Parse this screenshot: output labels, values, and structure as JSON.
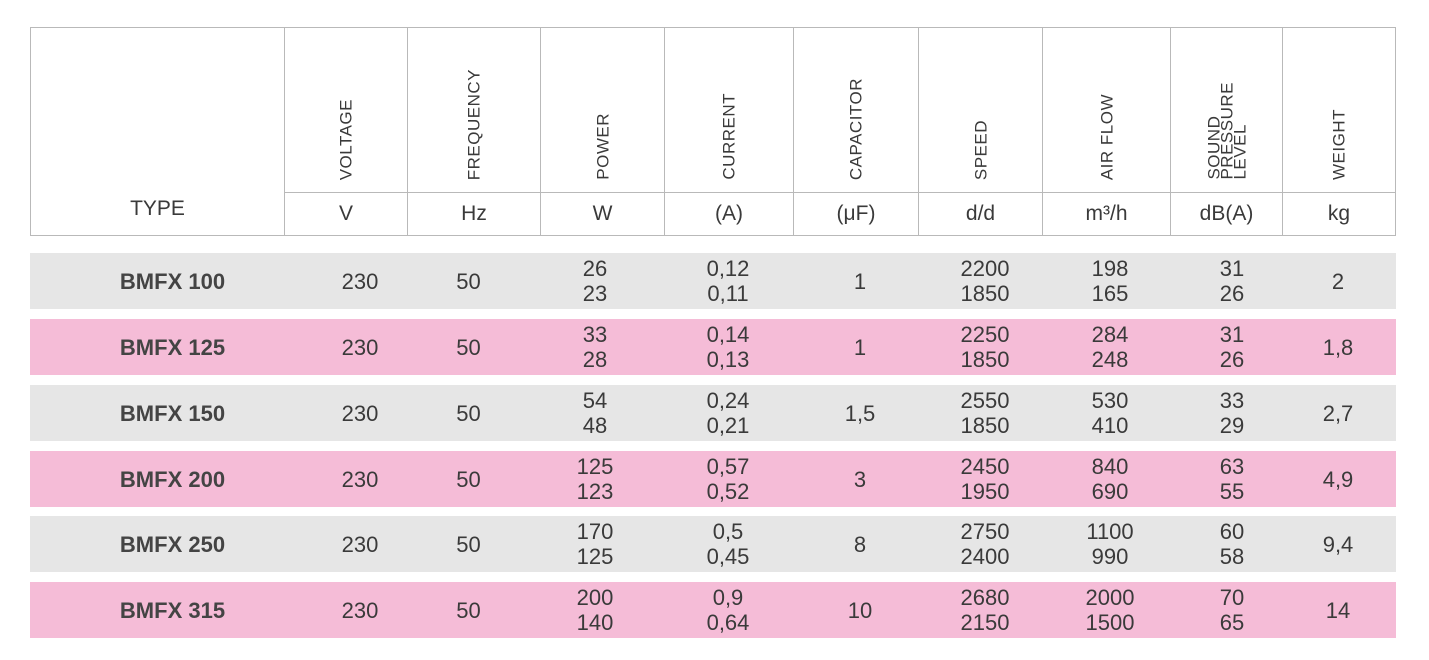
{
  "header": {
    "type_label": "TYPE",
    "columns": [
      {
        "label": "VOLTAGE",
        "unit": "V"
      },
      {
        "label": "FREQUENCY",
        "unit": "Hz"
      },
      {
        "label": "POWER",
        "unit": "W"
      },
      {
        "label": "CURRENT",
        "unit": "(A)"
      },
      {
        "label": "CAPACITOR",
        "unit": "(μF)"
      },
      {
        "label": "SPEED",
        "unit": "d/d"
      },
      {
        "label": "AIR FLOW",
        "unit": "m³/h"
      },
      {
        "label": "SOUND\nPRESSURE\nLEVEL",
        "unit": "dB(A)"
      },
      {
        "label": "WEIGHT",
        "unit": "kg"
      }
    ]
  },
  "rows": [
    {
      "type": "BMFX 100",
      "voltage": "230",
      "frequency": "50",
      "power": [
        "26",
        "23"
      ],
      "current": [
        "0,12",
        "0,11"
      ],
      "capacitor": "1",
      "speed": [
        "2200",
        "1850"
      ],
      "airflow": [
        "198",
        "165"
      ],
      "sound": [
        "31",
        "26"
      ],
      "weight": "2",
      "color": "#e6e6e6"
    },
    {
      "type": "BMFX 125",
      "voltage": "230",
      "frequency": "50",
      "power": [
        "33",
        "28"
      ],
      "current": [
        "0,14",
        "0,13"
      ],
      "capacitor": "1",
      "speed": [
        "2250",
        "1850"
      ],
      "airflow": [
        "284",
        "248"
      ],
      "sound": [
        "31",
        "26"
      ],
      "weight": "1,8",
      "color": "#f5bcd7"
    },
    {
      "type": "BMFX 150",
      "voltage": "230",
      "frequency": "50",
      "power": [
        "54",
        "48"
      ],
      "current": [
        "0,24",
        "0,21"
      ],
      "capacitor": "1,5",
      "speed": [
        "2550",
        "1850"
      ],
      "airflow": [
        "530",
        "410"
      ],
      "sound": [
        "33",
        "29"
      ],
      "weight": "2,7",
      "color": "#e6e6e6"
    },
    {
      "type": "BMFX 200",
      "voltage": "230",
      "frequency": "50",
      "power": [
        "125",
        "123"
      ],
      "current": [
        "0,57",
        "0,52"
      ],
      "capacitor": "3",
      "speed": [
        "2450",
        "1950"
      ],
      "airflow": [
        "840",
        "690"
      ],
      "sound": [
        "63",
        "55"
      ],
      "weight": "4,9",
      "color": "#f5bcd7"
    },
    {
      "type": "BMFX 250",
      "voltage": "230",
      "frequency": "50",
      "power": [
        "170",
        "125"
      ],
      "current": [
        "0,5",
        "0,45"
      ],
      "capacitor": "8",
      "speed": [
        "2750",
        "2400"
      ],
      "airflow": [
        "1100",
        "990"
      ],
      "sound": [
        "60",
        "58"
      ],
      "weight": "9,4",
      "color": "#e6e6e6"
    },
    {
      "type": "BMFX 315",
      "voltage": "230",
      "frequency": "50",
      "power": [
        "200",
        "140"
      ],
      "current": [
        "0,9",
        "0,64"
      ],
      "capacitor": "10",
      "speed": [
        "2680",
        "2150"
      ],
      "airflow": [
        "2000",
        "1500"
      ],
      "sound": [
        "70",
        "65"
      ],
      "weight": "14",
      "color": "#f5bcd7"
    }
  ]
}
